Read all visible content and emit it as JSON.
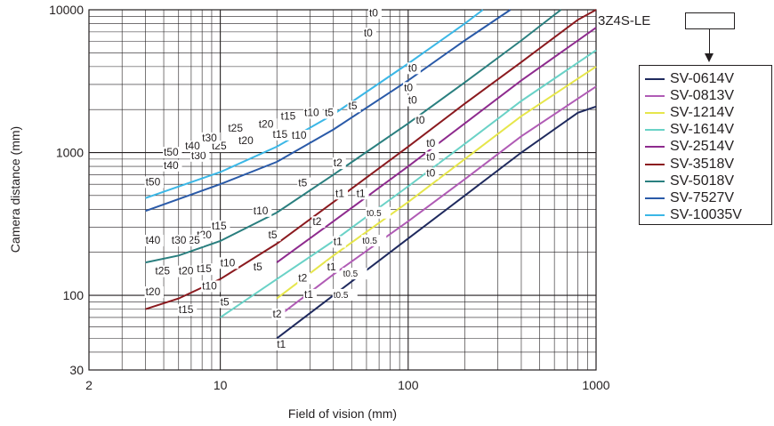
{
  "chart_data": {
    "type": "line",
    "xlabel": "Field of vision (mm)",
    "ylabel": "Camera distance (mm)",
    "xscale": "log",
    "yscale": "log",
    "xlim": [
      2,
      1000
    ],
    "ylim": [
      30,
      10000
    ],
    "xticks": [
      2,
      10,
      100,
      1000
    ],
    "xtick_labels": [
      "2",
      "10",
      "100",
      "1000"
    ],
    "yticks": [
      30,
      100,
      1000,
      10000
    ],
    "ytick_labels": [
      "30",
      "100",
      "1000",
      "10000"
    ],
    "grid": true,
    "legend_position": "right",
    "legend_title": "3Z4S-LE",
    "series": [
      {
        "name": "SV-0614V",
        "color": "#1f2a5e",
        "points": [
          [
            20,
            50
          ],
          [
            40,
            100
          ],
          [
            100,
            250
          ],
          [
            200,
            500
          ],
          [
            400,
            1000
          ],
          [
            800,
            1900
          ],
          [
            1000,
            2100
          ]
        ]
      },
      {
        "name": "SV-0813V",
        "color": "#b05bb5",
        "points": [
          [
            20,
            70
          ],
          [
            40,
            140
          ],
          [
            100,
            330
          ],
          [
            200,
            650
          ],
          [
            400,
            1300
          ],
          [
            1000,
            2900
          ]
        ]
      },
      {
        "name": "SV-1214V",
        "color": "#e6e64b",
        "points": [
          [
            20,
            95
          ],
          [
            40,
            190
          ],
          [
            100,
            450
          ],
          [
            200,
            900
          ],
          [
            400,
            1800
          ],
          [
            1000,
            4000
          ]
        ]
      },
      {
        "name": "SV-1614V",
        "color": "#6ad2c7",
        "points": [
          [
            10,
            70
          ],
          [
            20,
            130
          ],
          [
            40,
            240
          ],
          [
            100,
            580
          ],
          [
            200,
            1150
          ],
          [
            400,
            2300
          ],
          [
            1000,
            5200
          ]
        ]
      },
      {
        "name": "SV-2514V",
        "color": "#8e2b8e",
        "points": [
          [
            20,
            170
          ],
          [
            40,
            330
          ],
          [
            100,
            800
          ],
          [
            200,
            1600
          ],
          [
            400,
            3200
          ],
          [
            1000,
            7500
          ]
        ]
      },
      {
        "name": "SV-3518V",
        "color": "#8b1a1f",
        "points": [
          [
            4,
            80
          ],
          [
            6,
            95
          ],
          [
            10,
            130
          ],
          [
            20,
            230
          ],
          [
            40,
            450
          ],
          [
            100,
            1100
          ],
          [
            200,
            2200
          ],
          [
            400,
            4300
          ],
          [
            800,
            8500
          ],
          [
            1000,
            10000
          ]
        ]
      },
      {
        "name": "SV-5018V",
        "color": "#2a7f7f",
        "points": [
          [
            4,
            170
          ],
          [
            6,
            190
          ],
          [
            10,
            240
          ],
          [
            20,
            380
          ],
          [
            40,
            700
          ],
          [
            100,
            1600
          ],
          [
            200,
            3100
          ],
          [
            400,
            6100
          ],
          [
            650,
            10000
          ]
        ]
      },
      {
        "name": "SV-7527V",
        "color": "#2a5aa8",
        "points": [
          [
            4,
            390
          ],
          [
            10,
            600
          ],
          [
            20,
            860
          ],
          [
            40,
            1450
          ],
          [
            100,
            3200
          ],
          [
            200,
            6100
          ],
          [
            350,
            10000
          ]
        ]
      },
      {
        "name": "SV-10035V",
        "color": "#3bb7e6",
        "points": [
          [
            4,
            480
          ],
          [
            10,
            730
          ],
          [
            20,
            1100
          ],
          [
            40,
            1850
          ],
          [
            100,
            4200
          ],
          [
            200,
            8000
          ],
          [
            250,
            10000
          ]
        ]
      }
    ],
    "annotations": [
      {
        "text": "t0",
        "x": 62,
        "y": 9000
      },
      {
        "text": "t0",
        "x": 58,
        "y": 6500
      },
      {
        "text": "t0",
        "x": 100,
        "y": 3700
      },
      {
        "text": "t0",
        "x": 95,
        "y": 2700
      },
      {
        "text": "t0",
        "x": 100,
        "y": 2200
      },
      {
        "text": "t0",
        "x": 110,
        "y": 1600
      },
      {
        "text": "t0",
        "x": 125,
        "y": 1100
      },
      {
        "text": "t0",
        "x": 125,
        "y": 880
      },
      {
        "text": "t0",
        "x": 125,
        "y": 680
      },
      {
        "text": "t5",
        "x": 36,
        "y": 1800
      },
      {
        "text": "t5",
        "x": 48,
        "y": 2000
      },
      {
        "text": "t5",
        "x": 26,
        "y": 580
      },
      {
        "text": "t5",
        "x": 18,
        "y": 250
      },
      {
        "text": "t5",
        "x": 15,
        "y": 150
      },
      {
        "text": "t5",
        "x": 10,
        "y": 85
      },
      {
        "text": "t10",
        "x": 28,
        "y": 1800
      },
      {
        "text": "t10",
        "x": 24,
        "y": 1250
      },
      {
        "text": "t10",
        "x": 15,
        "y": 370
      },
      {
        "text": "t10",
        "x": 10,
        "y": 160
      },
      {
        "text": "t10",
        "x": 8,
        "y": 110
      },
      {
        "text": "t15",
        "x": 21,
        "y": 1700
      },
      {
        "text": "t15",
        "x": 19,
        "y": 1270
      },
      {
        "text": "t15",
        "x": 9,
        "y": 290
      },
      {
        "text": "t15",
        "x": 7.5,
        "y": 145
      },
      {
        "text": "t15",
        "x": 6,
        "y": 75
      },
      {
        "text": "t20",
        "x": 16,
        "y": 1500
      },
      {
        "text": "t20",
        "x": 12.5,
        "y": 1150
      },
      {
        "text": "t20",
        "x": 7.5,
        "y": 250
      },
      {
        "text": "t20",
        "x": 6,
        "y": 140
      },
      {
        "text": "t20",
        "x": 4,
        "y": 100
      },
      {
        "text": "t25",
        "x": 11,
        "y": 1400
      },
      {
        "text": "t25",
        "x": 9,
        "y": 1050
      },
      {
        "text": "t25",
        "x": 6.5,
        "y": 230
      },
      {
        "text": "t25",
        "x": 4.5,
        "y": 140
      },
      {
        "text": "t30",
        "x": 8,
        "y": 1200
      },
      {
        "text": "t30",
        "x": 7,
        "y": 900
      },
      {
        "text": "t30",
        "x": 5.5,
        "y": 230
      },
      {
        "text": "t40",
        "x": 6.5,
        "y": 1050
      },
      {
        "text": "t40",
        "x": 5,
        "y": 770
      },
      {
        "text": "t40",
        "x": 4,
        "y": 230
      },
      {
        "text": "t50",
        "x": 5,
        "y": 950
      },
      {
        "text": "t50",
        "x": 4,
        "y": 590
      },
      {
        "text": "t2",
        "x": 40,
        "y": 800
      },
      {
        "text": "t2",
        "x": 31,
        "y": 310
      },
      {
        "text": "t2",
        "x": 26,
        "y": 125
      },
      {
        "text": "t2",
        "x": 19,
        "y": 70
      },
      {
        "text": "t1",
        "x": 41,
        "y": 490
      },
      {
        "text": "t1",
        "x": 53,
        "y": 490
      },
      {
        "text": "t1",
        "x": 40,
        "y": 225
      },
      {
        "text": "t1",
        "x": 37,
        "y": 150
      },
      {
        "text": "t1",
        "x": 28,
        "y": 96
      },
      {
        "text": "t1",
        "x": 20,
        "y": 43
      },
      {
        "text": "t0.5",
        "x": 60,
        "y": 360
      },
      {
        "text": "t0.5",
        "x": 57,
        "y": 230
      },
      {
        "text": "t0.5",
        "x": 45,
        "y": 135
      },
      {
        "text": "t0.5",
        "x": 40,
        "y": 96
      }
    ]
  },
  "legend": {
    "title": "3Z4S-LE",
    "items": [
      {
        "label": "SV-0614V",
        "color": "#1f2a5e"
      },
      {
        "label": "SV-0813V",
        "color": "#b05bb5"
      },
      {
        "label": "SV-1214V",
        "color": "#e6e64b"
      },
      {
        "label": "SV-1614V",
        "color": "#6ad2c7"
      },
      {
        "label": "SV-2514V",
        "color": "#8e2b8e"
      },
      {
        "label": "SV-3518V",
        "color": "#8b1a1f"
      },
      {
        "label": "SV-5018V",
        "color": "#2a7f7f"
      },
      {
        "label": "SV-7527V",
        "color": "#2a5aa8"
      },
      {
        "label": "SV-10035V",
        "color": "#3bb7e6"
      }
    ]
  }
}
